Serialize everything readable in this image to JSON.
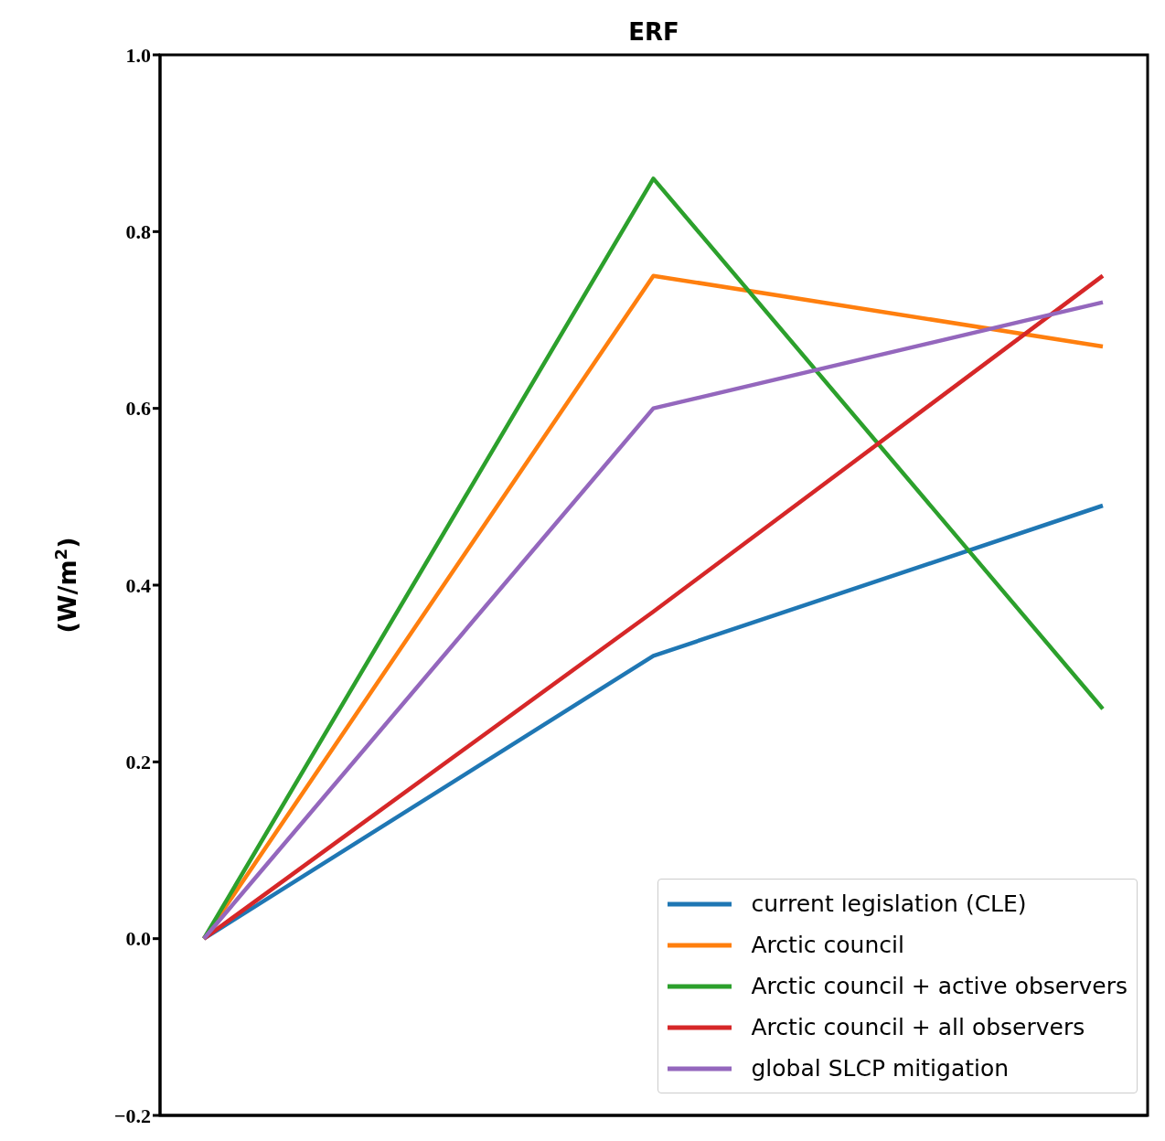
{
  "chart_data": {
    "type": "line",
    "title": "ERF",
    "ylabel": "(W/m$^{2}$)",
    "categories": [
      null,
      null,
      null
    ],
    "series": [
      {
        "name": "current legislation (CLE)",
        "color": "#1f77b4",
        "values": [
          0,
          0.32,
          0.49
        ]
      },
      {
        "name": "Arctic council",
        "color": "#ff7f0e",
        "values": [
          0,
          0.75,
          0.67
        ]
      },
      {
        "name": "Arctic council + active observers",
        "color": "#2ca02c",
        "values": [
          0,
          0.86,
          0.26
        ]
      },
      {
        "name": "Arctic council + all observers",
        "color": "#d62728",
        "values": [
          0,
          0.37,
          0.75
        ]
      },
      {
        "name": "global SLCP mitigation",
        "color": "#9467bd",
        "values": [
          0,
          0.6,
          0.72
        ]
      }
    ],
    "ylim": [
      -0.2,
      1.0
    ],
    "yticks": [
      {
        "value": -0.2,
        "label": "−0.2"
      },
      {
        "value": 0,
        "label": "0.0"
      },
      {
        "value": 0.2,
        "label": "0.2"
      },
      {
        "value": 0.4,
        "label": "0.4"
      },
      {
        "value": 0.6,
        "label": "0.6"
      },
      {
        "value": 0.8,
        "label": "0.8"
      },
      {
        "value": 1.0,
        "label": "1.0"
      }
    ],
    "tick_labels": "y",
    "grid": false,
    "legend": "bottom right",
    "marker": "none",
    "line_style": "solid"
  }
}
